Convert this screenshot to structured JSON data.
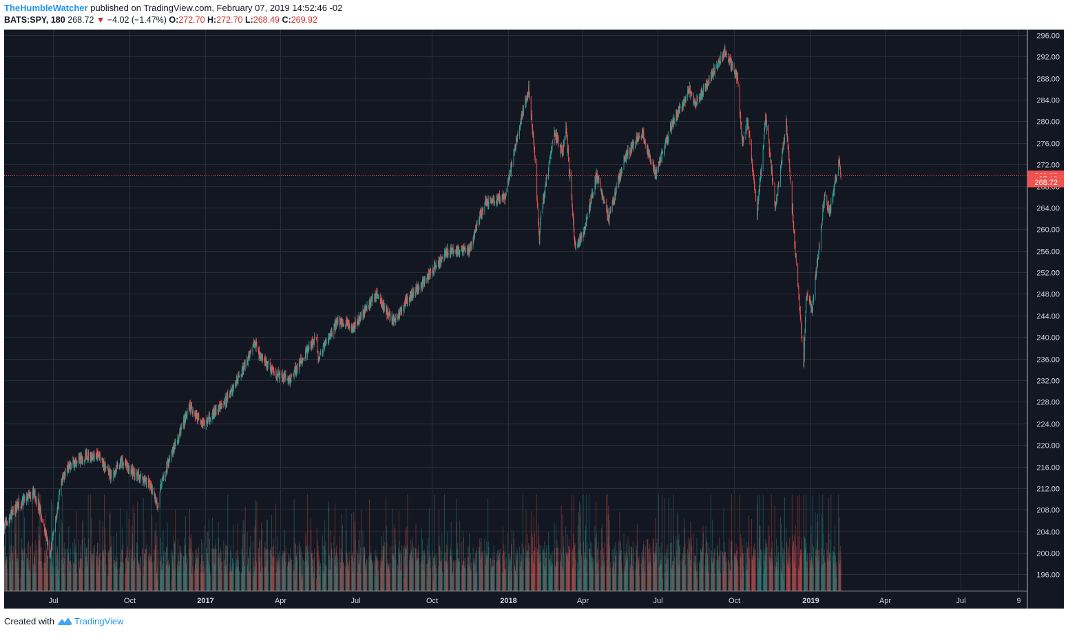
{
  "header": {
    "author": "TheHumbleWatcher",
    "published_text": "published on TradingView.com, February 07, 2019 14:52:46 -02",
    "symbol": "BATS:SPY, 180",
    "last": "268.72",
    "change": "−4.02 (−1.47%)",
    "o_label": "O:",
    "o_value": "272.70",
    "h_label": "H:",
    "h_value": "272.70",
    "l_label": "L:",
    "l_value": "268.49",
    "c_label": "C:",
    "c_value": "269.92"
  },
  "footer": {
    "created_with": "Created with",
    "brand": "TradingView"
  },
  "colors": {
    "background": "#131722",
    "up": "#26a69a",
    "down": "#ef5350",
    "grid": "#2a2e39",
    "axis_text": "#d1d4dc",
    "price_tag": "#ef5350"
  },
  "price_tags": {
    "close": "269.92",
    "countdown": "37:13",
    "last": "268.72"
  },
  "chart_data": {
    "type": "candlestick",
    "symbol": "BATS:SPY",
    "interval": "180",
    "ylim": [
      193,
      297
    ],
    "y_ticks": [
      196,
      200,
      204,
      208,
      212,
      216,
      220,
      224,
      228,
      232,
      236,
      240,
      244,
      248,
      252,
      256,
      260,
      264,
      268,
      272,
      276,
      280,
      284,
      288,
      292,
      296
    ],
    "x_range": [
      "2016-05-03",
      "2019-09-20"
    ],
    "x_ticks": [
      {
        "label": "Jul",
        "date": "2016-07-01",
        "bold": false
      },
      {
        "label": "Oct",
        "date": "2016-10-01",
        "bold": false
      },
      {
        "label": "2017",
        "date": "2017-01-01",
        "bold": true
      },
      {
        "label": "Apr",
        "date": "2017-04-01",
        "bold": false
      },
      {
        "label": "Jul",
        "date": "2017-07-01",
        "bold": false
      },
      {
        "label": "Oct",
        "date": "2017-10-01",
        "bold": false
      },
      {
        "label": "2018",
        "date": "2018-01-01",
        "bold": true
      },
      {
        "label": "Apr",
        "date": "2018-04-01",
        "bold": false
      },
      {
        "label": "Jul",
        "date": "2018-07-01",
        "bold": false
      },
      {
        "label": "Oct",
        "date": "2018-10-01",
        "bold": false
      },
      {
        "label": "2019",
        "date": "2019-01-01",
        "bold": true
      },
      {
        "label": "Apr",
        "date": "2019-04-01",
        "bold": false
      },
      {
        "label": "Jul",
        "date": "2019-07-01",
        "bold": false
      },
      {
        "label": "9",
        "date": "2019-09-09",
        "bold": false
      }
    ],
    "price_path": [
      [
        "2016-05-03",
        205
      ],
      [
        "2016-05-20",
        209
      ],
      [
        "2016-06-08",
        211
      ],
      [
        "2016-06-15",
        208
      ],
      [
        "2016-06-24",
        202
      ],
      [
        "2016-06-27",
        199
      ],
      [
        "2016-07-12",
        214
      ],
      [
        "2016-07-20",
        216
      ],
      [
        "2016-08-10",
        218
      ],
      [
        "2016-08-25",
        218
      ],
      [
        "2016-09-09",
        214
      ],
      [
        "2016-09-22",
        217
      ],
      [
        "2016-10-05",
        215
      ],
      [
        "2016-10-25",
        213
      ],
      [
        "2016-11-04",
        209
      ],
      [
        "2016-11-09",
        213
      ],
      [
        "2016-11-25",
        220
      ],
      [
        "2016-12-13",
        227
      ],
      [
        "2016-12-30",
        224
      ],
      [
        "2017-01-25",
        228
      ],
      [
        "2017-02-15",
        234
      ],
      [
        "2017-03-01",
        239
      ],
      [
        "2017-03-10",
        236
      ],
      [
        "2017-03-27",
        233
      ],
      [
        "2017-04-13",
        232
      ],
      [
        "2017-04-24",
        235
      ],
      [
        "2017-05-15",
        240
      ],
      [
        "2017-05-17",
        236
      ],
      [
        "2017-06-09",
        243
      ],
      [
        "2017-06-29",
        242
      ],
      [
        "2017-07-26",
        248
      ],
      [
        "2017-08-10",
        244
      ],
      [
        "2017-08-18",
        243
      ],
      [
        "2017-09-01",
        247
      ],
      [
        "2017-09-20",
        250
      ],
      [
        "2017-10-20",
        256
      ],
      [
        "2017-11-15",
        256
      ],
      [
        "2017-12-04",
        265
      ],
      [
        "2017-12-29",
        266
      ],
      [
        "2018-01-16",
        280
      ],
      [
        "2018-01-26",
        286
      ],
      [
        "2018-02-02",
        275
      ],
      [
        "2018-02-08",
        257
      ],
      [
        "2018-02-09",
        262
      ],
      [
        "2018-02-26",
        278
      ],
      [
        "2018-03-08",
        274
      ],
      [
        "2018-03-12",
        279
      ],
      [
        "2018-03-23",
        257
      ],
      [
        "2018-04-02",
        259
      ],
      [
        "2018-04-18",
        270
      ],
      [
        "2018-05-03",
        262
      ],
      [
        "2018-05-21",
        273
      ],
      [
        "2018-06-12",
        278
      ],
      [
        "2018-06-28",
        270
      ],
      [
        "2018-07-17",
        279
      ],
      [
        "2018-08-08",
        286
      ],
      [
        "2018-08-15",
        283
      ],
      [
        "2018-09-20",
        293
      ],
      [
        "2018-10-05",
        288
      ],
      [
        "2018-10-11",
        276
      ],
      [
        "2018-10-17",
        280
      ],
      [
        "2018-10-29",
        263
      ],
      [
        "2018-11-08",
        281
      ],
      [
        "2018-11-20",
        264
      ],
      [
        "2018-12-03",
        280
      ],
      [
        "2018-12-10",
        264
      ],
      [
        "2018-12-24",
        235
      ],
      [
        "2018-12-27",
        248
      ],
      [
        "2019-01-03",
        245
      ],
      [
        "2019-01-18",
        266
      ],
      [
        "2019-01-24",
        263
      ],
      [
        "2019-02-05",
        273
      ],
      [
        "2019-02-07",
        268.72
      ]
    ],
    "last_bar": {
      "open": 272.7,
      "high": 272.7,
      "low": 268.49,
      "close": 269.92
    }
  }
}
